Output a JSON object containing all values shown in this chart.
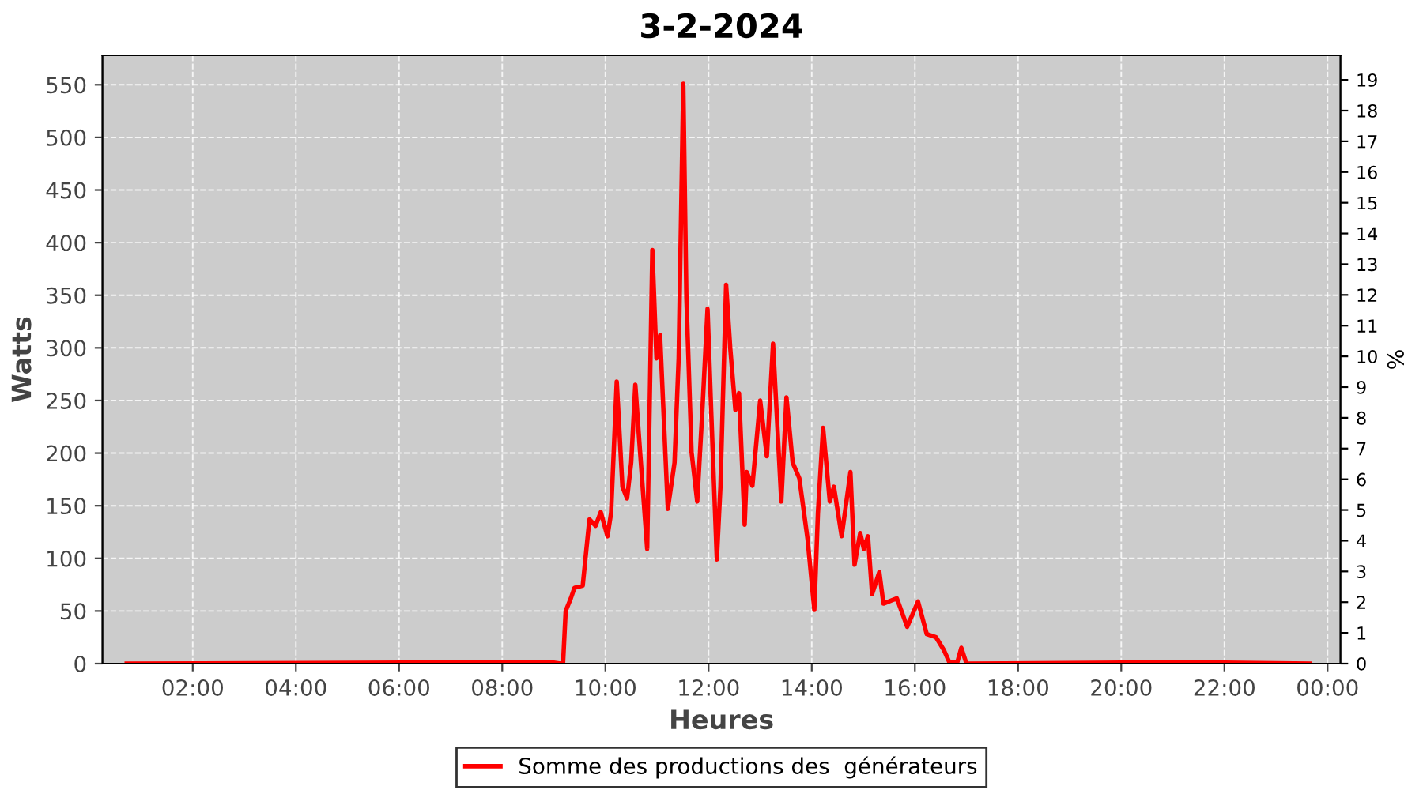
{
  "chart_data": {
    "type": "line",
    "title": "3-2-2024",
    "xlabel": "Heures",
    "ylabel": "Watts",
    "y2label": "%",
    "xlim": [
      0.25,
      24.25
    ],
    "ylim": [
      0,
      578
    ],
    "y2lim": [
      0,
      19.8
    ],
    "xticks": [
      {
        "value": 2,
        "label": "02:00"
      },
      {
        "value": 4,
        "label": "04:00"
      },
      {
        "value": 6,
        "label": "06:00"
      },
      {
        "value": 8,
        "label": "08:00"
      },
      {
        "value": 10,
        "label": "10:00"
      },
      {
        "value": 12,
        "label": "12:00"
      },
      {
        "value": 14,
        "label": "14:00"
      },
      {
        "value": 16,
        "label": "16:00"
      },
      {
        "value": 18,
        "label": "18:00"
      },
      {
        "value": 20,
        "label": "20:00"
      },
      {
        "value": 22,
        "label": "22:00"
      },
      {
        "value": 24,
        "label": "00:00"
      }
    ],
    "yticks": [
      0,
      50,
      100,
      150,
      200,
      250,
      300,
      350,
      400,
      450,
      500,
      550
    ],
    "y2ticks": [
      0,
      1,
      2,
      3,
      4,
      5,
      6,
      7,
      8,
      9,
      10,
      11,
      12,
      13,
      14,
      15,
      16,
      17,
      18,
      19
    ],
    "grid": true,
    "legend": "bottom",
    "marker": "none",
    "line_style": "solid",
    "series": [
      {
        "name": "Somme des productions des  générateurs",
        "color": "#ff0000",
        "x": [
          0.72,
          7.0,
          7.5,
          8.0,
          8.5,
          9.0,
          9.13,
          9.18,
          9.23,
          9.33,
          9.4,
          9.56,
          9.69,
          9.81,
          9.91,
          10.04,
          10.11,
          10.22,
          10.33,
          10.42,
          10.5,
          10.58,
          10.65,
          10.81,
          10.91,
          10.99,
          11.06,
          11.21,
          11.34,
          11.42,
          11.51,
          11.57,
          11.67,
          11.78,
          11.88,
          11.98,
          12.05,
          12.16,
          12.23,
          12.34,
          12.42,
          12.52,
          12.59,
          12.7,
          12.74,
          12.85,
          13.0,
          13.13,
          13.25,
          13.41,
          13.51,
          13.63,
          13.76,
          13.92,
          14.05,
          14.12,
          14.22,
          14.35,
          14.43,
          14.58,
          14.75,
          14.83,
          14.94,
          15.01,
          15.09,
          15.17,
          15.31,
          15.39,
          15.65,
          15.85,
          16.06,
          16.23,
          16.41,
          16.56,
          16.67,
          16.82,
          16.9,
          17.0,
          20.0,
          22.0,
          23.65
        ],
        "values": [
          0,
          1,
          1,
          1,
          1,
          1,
          0,
          1,
          50,
          62,
          72,
          74,
          137,
          131,
          144,
          121,
          143,
          268,
          168,
          157,
          191,
          265,
          216,
          109,
          393,
          290,
          312,
          147,
          191,
          290,
          551,
          348,
          201,
          154,
          241,
          337,
          241,
          99,
          168,
          360,
          300,
          241,
          257,
          132,
          182,
          169,
          250,
          197,
          304,
          154,
          253,
          191,
          176,
          118,
          51,
          143,
          224,
          154,
          168,
          121,
          182,
          94,
          124,
          109,
          121,
          66,
          87,
          57,
          62,
          35,
          59,
          28,
          25,
          13,
          1,
          1,
          15,
          0,
          1,
          1,
          0
        ]
      }
    ]
  }
}
